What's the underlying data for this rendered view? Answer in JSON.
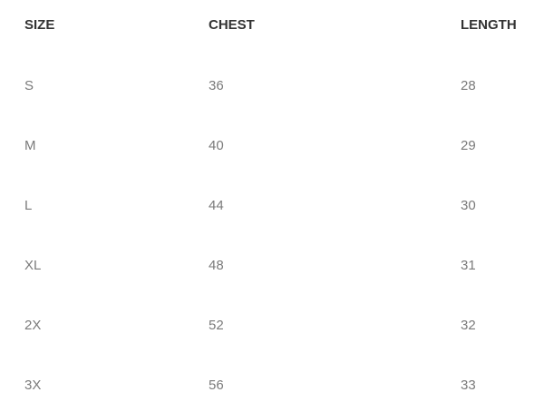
{
  "table": {
    "headers": [
      "SIZE",
      "CHEST",
      "LENGTH"
    ],
    "rows": [
      [
        "S",
        "36",
        "28"
      ],
      [
        "M",
        "40",
        "29"
      ],
      [
        "L",
        "44",
        "30"
      ],
      [
        "XL",
        "48",
        "31"
      ],
      [
        "2X",
        "52",
        "32"
      ],
      [
        "3X",
        "56",
        "33"
      ]
    ]
  }
}
